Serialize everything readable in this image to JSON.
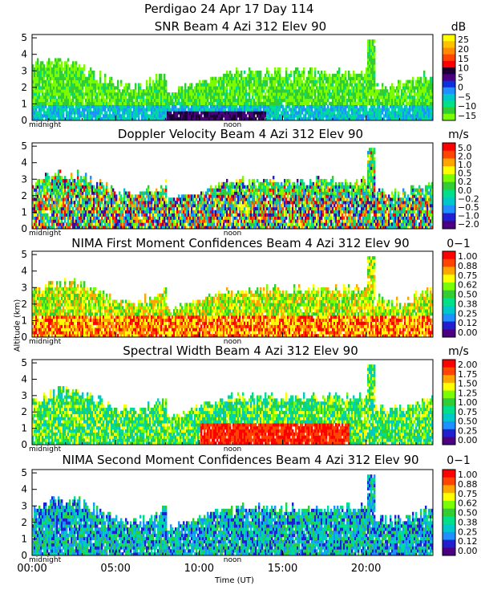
{
  "header": {
    "line1": "Perdigao  24 Apr 17 Day 114"
  },
  "palette_13": [
    "#7cfc00",
    "#32cd32",
    "#00e08a",
    "#00c8c8",
    "#1e90ff",
    "#0a30e0",
    "#4b0082",
    "#1a0033",
    "#ff0000",
    "#ff4500",
    "#ff8c00",
    "#ffc000",
    "#ffff00"
  ],
  "palette_11": [
    "#4b0082",
    "#2020d0",
    "#1e90ff",
    "#00c8c8",
    "#00e08a",
    "#32cd32",
    "#7cfc00",
    "#ffff00",
    "#ffa500",
    "#ff4500",
    "#ff0000"
  ],
  "common": {
    "ylabel": "Altitude (km)",
    "xlabel": "Time (UT)",
    "xticks": [
      "00:00",
      "05:00",
      "10:00",
      "15:00",
      "20:00"
    ],
    "yticks": [
      "0",
      "1",
      "2",
      "3",
      "4",
      "5"
    ],
    "tick_top_labels": [
      "midnight",
      "noon"
    ]
  },
  "chart_data": [
    {
      "type": "heatmap",
      "title": "SNR Beam 4 Azi 312 Elev 90",
      "unit": "dB",
      "colorbar_ticks": [
        "25",
        "20",
        "15",
        "10",
        "5",
        "0",
        "−5",
        "−10",
        "−15"
      ],
      "palette": "palette_13",
      "xlim": [
        0,
        24
      ],
      "ylim": [
        0,
        5.2
      ]
    },
    {
      "type": "heatmap",
      "title": "Doppler Velocity Beam 4 Azi 312 Elev 90",
      "unit": "m/s",
      "colorbar_ticks": [
        "5.0",
        "2.0",
        "1.0",
        "0.5",
        "0.2",
        "0.0",
        "−0.2",
        "−0.5",
        "−1.0",
        "−2.0"
      ],
      "palette": "palette_11",
      "xlim": [
        0,
        24
      ],
      "ylim": [
        0,
        5.2
      ]
    },
    {
      "type": "heatmap",
      "title": "NIMA First Moment Confidences Beam 4 Azi 312 Elev 90",
      "unit": "0−1",
      "colorbar_ticks": [
        "1.00",
        "0.88",
        "0.75",
        "0.62",
        "0.50",
        "0.38",
        "0.25",
        "0.12",
        "0.00"
      ],
      "palette": "palette_11",
      "xlim": [
        0,
        24
      ],
      "ylim": [
        0,
        5.2
      ]
    },
    {
      "type": "heatmap",
      "title": "Spectral Width Beam 4 Azi 312 Elev 90",
      "unit": "m/s",
      "colorbar_ticks": [
        "2.00",
        "1.75",
        "1.50",
        "1.25",
        "1.00",
        "0.75",
        "0.50",
        "0.25",
        "0.00"
      ],
      "palette": "palette_11",
      "xlim": [
        0,
        24
      ],
      "ylim": [
        0,
        5.2
      ]
    },
    {
      "type": "heatmap",
      "title": "NIMA Second Moment Confidences Beam 4 Azi 312 Elev 90",
      "unit": "0−1",
      "colorbar_ticks": [
        "1.00",
        "0.88",
        "0.75",
        "0.62",
        "0.50",
        "0.38",
        "0.25",
        "0.12",
        "0.00"
      ],
      "palette": "palette_11",
      "xlim": [
        0,
        24
      ],
      "ylim": [
        0,
        5.2
      ]
    }
  ]
}
